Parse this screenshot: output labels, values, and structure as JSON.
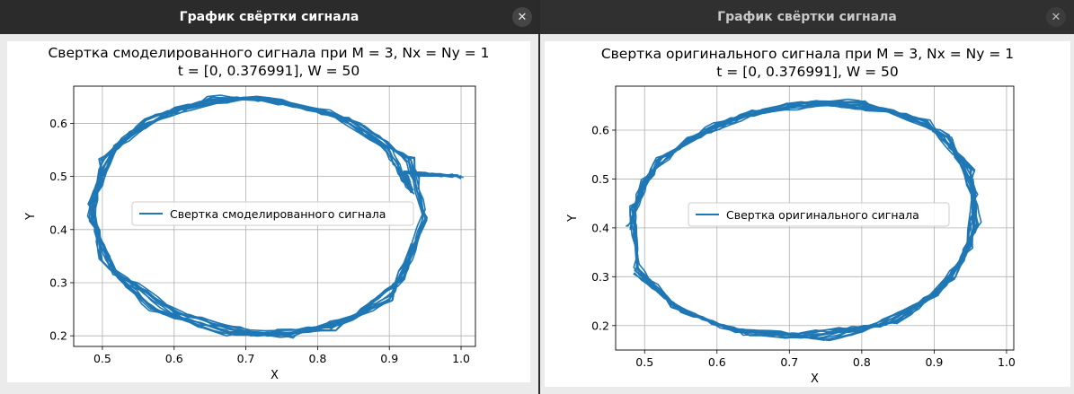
{
  "windows": [
    {
      "title": "График свёртки сигнала",
      "close_glyph": "✕",
      "chart": {
        "title_line1": "Свертка смоделированного сигнала при M = 3, Nx = Ny = 1",
        "title_line2": "t = [0, 0.376991], W = 50",
        "legend": "Свертка смоделированного сигнала",
        "xlabel": "X",
        "ylabel": "Y"
      }
    },
    {
      "title": "График свёртки сигнала",
      "close_glyph": "✕",
      "chart": {
        "title_line1": "Свертка оригинального сигнала при M = 3, Nx = Ny = 1",
        "title_line2": "t = [0, 0.376991], W = 50",
        "legend": "Свертка оригинального сигнала",
        "xlabel": "X",
        "ylabel": "Y"
      }
    }
  ],
  "chart_data": [
    {
      "type": "line",
      "title": "Свертка смоделированного сигнала при M = 3, Nx = Ny = 1\nt = [0, 0.376991], W = 50",
      "xlabel": "X",
      "ylabel": "Y",
      "xlim": [
        0.46,
        1.02
      ],
      "ylim": [
        0.18,
        0.67
      ],
      "xticks": [
        "0.5",
        "0.6",
        "0.7",
        "0.8",
        "0.9",
        "1.0"
      ],
      "yticks": [
        "0.2",
        "0.3",
        "0.4",
        "0.5",
        "0.6"
      ],
      "grid": true,
      "legend_position": "center",
      "color": "#1f77b4",
      "series": [
        {
          "name": "Свертка смоделированного сигнала",
          "shape": "noisy-ellipse-loops",
          "x": [
            1.0,
            0.92,
            0.93,
            0.9,
            0.82,
            0.71,
            0.6,
            0.52,
            0.485,
            0.5,
            0.57,
            0.67,
            0.76,
            0.85,
            0.92,
            0.95,
            0.93,
            0.86,
            0.75,
            0.65,
            0.56,
            0.5,
            0.485,
            0.52,
            0.6,
            0.71,
            0.82,
            0.9,
            0.935
          ],
          "y": [
            0.5,
            0.51,
            0.47,
            0.55,
            0.62,
            0.65,
            0.625,
            0.56,
            0.45,
            0.34,
            0.25,
            0.205,
            0.2,
            0.235,
            0.31,
            0.42,
            0.53,
            0.6,
            0.645,
            0.645,
            0.605,
            0.53,
            0.42,
            0.32,
            0.245,
            0.205,
            0.215,
            0.27,
            0.37
          ]
        }
      ]
    },
    {
      "type": "line",
      "title": "Свертка оригинального сигнала при M = 3, Nx = Ny = 1\nt = [0, 0.376991], W = 50",
      "xlabel": "X",
      "ylabel": "Y",
      "xlim": [
        0.46,
        1.01
      ],
      "ylim": [
        0.15,
        0.69
      ],
      "xticks": [
        "0.5",
        "0.6",
        "0.7",
        "0.8",
        "0.9",
        "1.0"
      ],
      "yticks": [
        "0.2",
        "0.3",
        "0.4",
        "0.5",
        "0.6"
      ],
      "grid": true,
      "legend_position": "center",
      "color": "#1f77b4",
      "series": [
        {
          "name": "Свертка оригинального сигнала",
          "shape": "noisy-ellipse-loops",
          "x": [
            0.48,
            0.5,
            0.56,
            0.65,
            0.74,
            0.84,
            0.92,
            0.955,
            0.95,
            0.9,
            0.82,
            0.72,
            0.62,
            0.54,
            0.49,
            0.485,
            0.52,
            0.6,
            0.7,
            0.8,
            0.89,
            0.95,
            0.96,
            0.93,
            0.85,
            0.75,
            0.64,
            0.55,
            0.49
          ],
          "y": [
            0.4,
            0.5,
            0.58,
            0.635,
            0.655,
            0.64,
            0.585,
            0.47,
            0.36,
            0.26,
            0.2,
            0.18,
            0.19,
            0.24,
            0.32,
            0.44,
            0.54,
            0.615,
            0.655,
            0.655,
            0.615,
            0.52,
            0.41,
            0.3,
            0.21,
            0.175,
            0.185,
            0.23,
            0.31
          ]
        }
      ]
    }
  ]
}
